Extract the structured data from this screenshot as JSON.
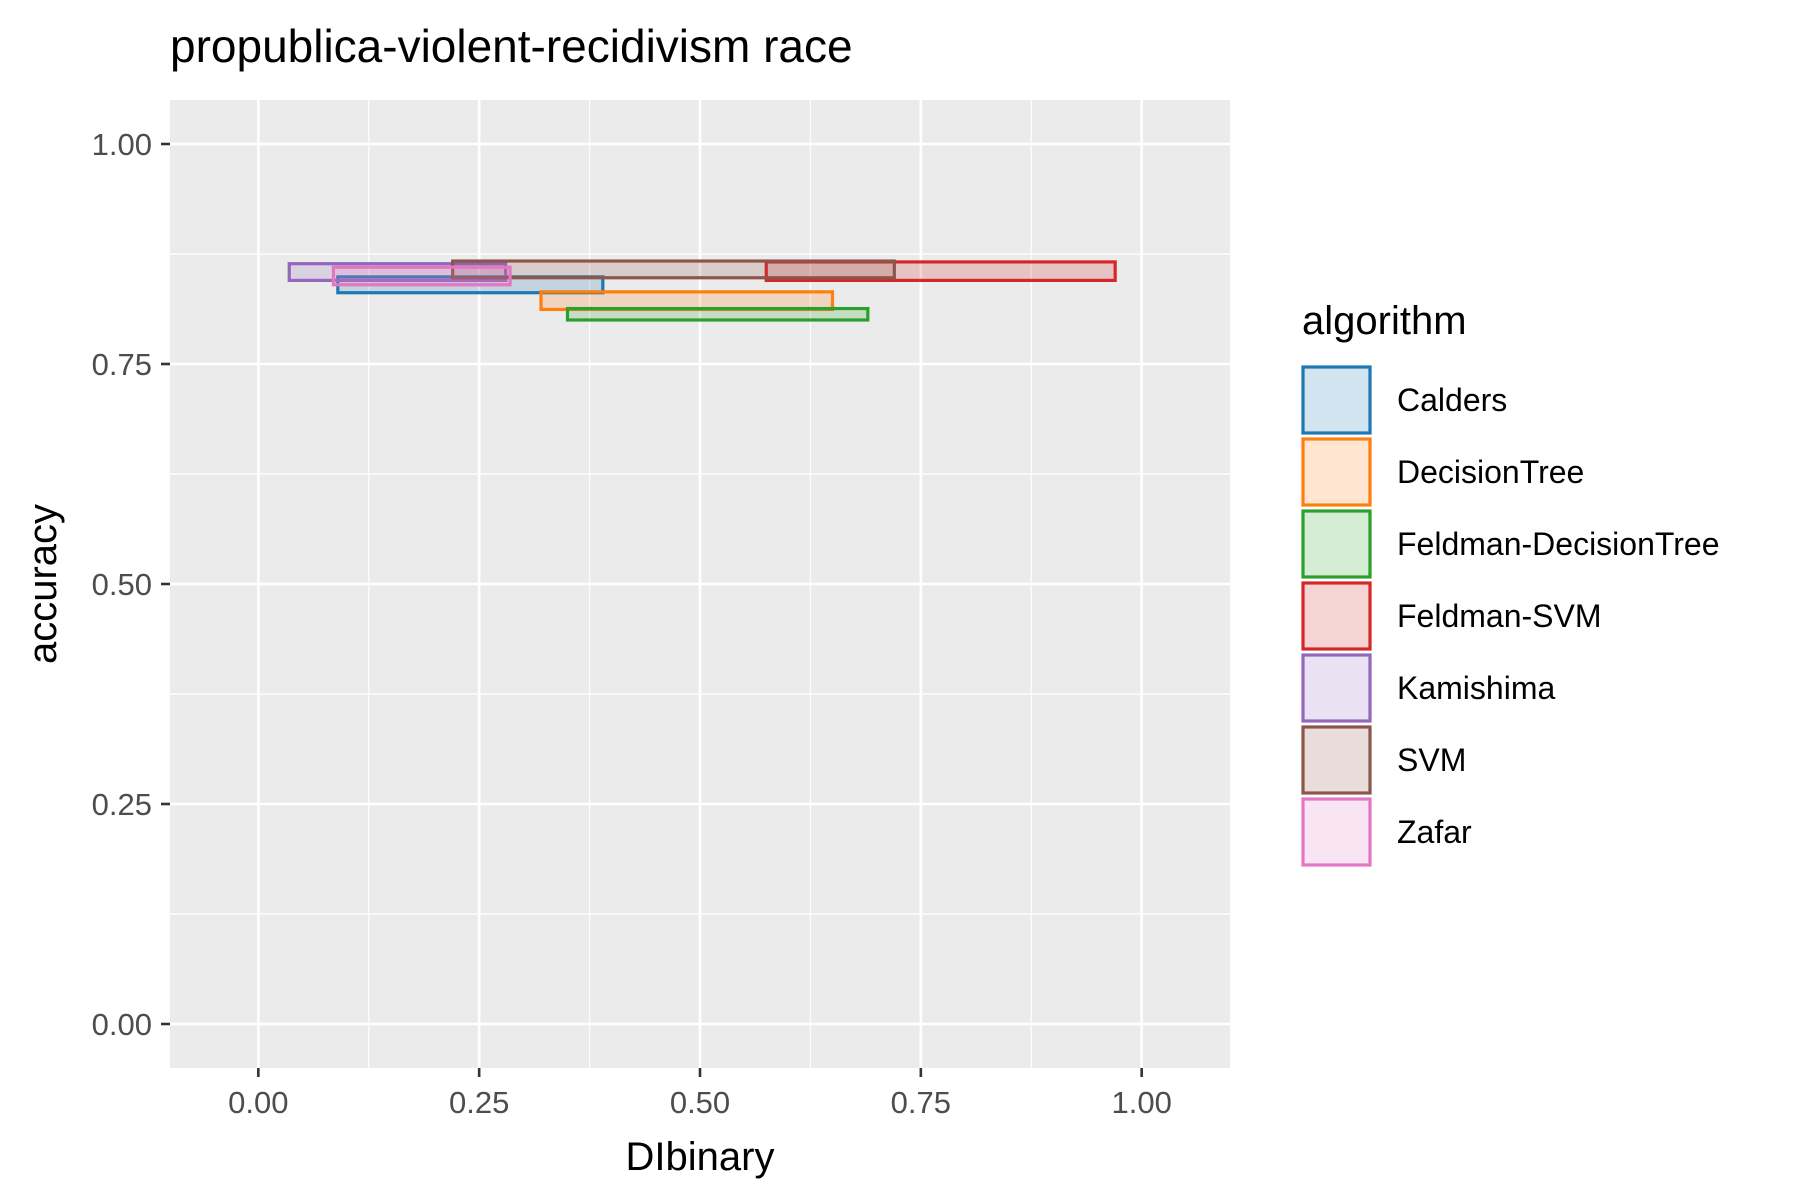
{
  "chart_data": {
    "type": "rect",
    "title": "propublica-violent-recidivism race",
    "xlabel": "DIbinary",
    "ylabel": "accuracy",
    "xlim": [
      -0.1,
      1.1
    ],
    "ylim": [
      -0.05,
      1.05
    ],
    "x_ticks": [
      {
        "value": 0,
        "label": "0.00"
      },
      {
        "value": 0.25,
        "label": "0.25"
      },
      {
        "value": 0.5,
        "label": "0.50"
      },
      {
        "value": 0.75,
        "label": "0.75"
      },
      {
        "value": 1,
        "label": "1.00"
      }
    ],
    "y_ticks": [
      {
        "value": 0,
        "label": "0.00"
      },
      {
        "value": 0.25,
        "label": "0.25"
      },
      {
        "value": 0.5,
        "label": "0.50"
      },
      {
        "value": 0.75,
        "label": "0.75"
      },
      {
        "value": 1,
        "label": "1.00"
      }
    ],
    "grid": true,
    "legend": {
      "title": "algorithm",
      "placement": "right"
    },
    "series": [
      {
        "name": "Calders",
        "color": "#1f77b4",
        "xmin": 0.09,
        "xmax": 0.39,
        "ymin": 0.831,
        "ymax": 0.849
      },
      {
        "name": "DecisionTree",
        "color": "#ff7f0e",
        "xmin": 0.32,
        "xmax": 0.65,
        "ymin": 0.812,
        "ymax": 0.832
      },
      {
        "name": "Feldman-DecisionTree",
        "color": "#2ca02c",
        "xmin": 0.35,
        "xmax": 0.69,
        "ymin": 0.8,
        "ymax": 0.813
      },
      {
        "name": "Feldman-SVM",
        "color": "#d62728",
        "xmin": 0.575,
        "xmax": 0.97,
        "ymin": 0.845,
        "ymax": 0.866
      },
      {
        "name": "Kamishima",
        "color": "#9467bd",
        "xmin": 0.035,
        "xmax": 0.28,
        "ymin": 0.845,
        "ymax": 0.864
      },
      {
        "name": "SVM",
        "color": "#8c564b",
        "xmin": 0.22,
        "xmax": 0.72,
        "ymin": 0.848,
        "ymax": 0.867
      },
      {
        "name": "Zafar",
        "color": "#e377c2",
        "xmin": 0.085,
        "xmax": 0.285,
        "ymin": 0.84,
        "ymax": 0.86
      }
    ]
  }
}
